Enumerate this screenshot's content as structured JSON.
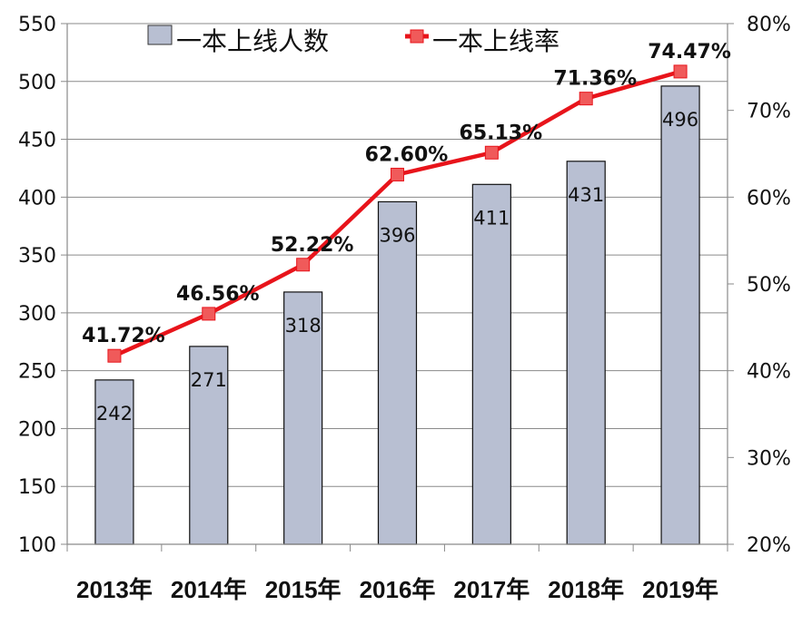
{
  "chart_data": {
    "type": "bar+line",
    "title": "",
    "categories": [
      "2013年",
      "2014年",
      "2015年",
      "2016年",
      "2017年",
      "2018年",
      "2019年"
    ],
    "series": [
      {
        "name": "一本上线人数",
        "type": "bar",
        "axis": "left",
        "color": "#b8bfd2",
        "values": [
          242,
          271,
          318,
          396,
          411,
          431,
          496
        ],
        "labels": [
          "242",
          "271",
          "318",
          "396",
          "411",
          "431",
          "496"
        ]
      },
      {
        "name": "一本上线率",
        "type": "line",
        "axis": "right",
        "color": "#e8141b",
        "marker": "square",
        "marker_color": "#f05a5a",
        "values": [
          41.72,
          46.56,
          52.22,
          62.6,
          65.13,
          71.36,
          74.47
        ],
        "labels": [
          "41.72%",
          "46.56%",
          "52.22%",
          "62.60%",
          "65.13%",
          "71.36%",
          "74.47%"
        ]
      }
    ],
    "left_axis": {
      "ylim": [
        100,
        550
      ],
      "ticks": [
        "550",
        "500",
        "450",
        "400",
        "350",
        "300",
        "250",
        "200",
        "150",
        "100"
      ]
    },
    "right_axis": {
      "ylim": [
        20,
        80
      ],
      "ticks": [
        "80%",
        "70%",
        "60%",
        "50%",
        "40%",
        "30%",
        "20%"
      ]
    },
    "xlabel": "",
    "ylabel": "",
    "grid": true,
    "legend": {
      "position": "top",
      "entries": [
        "一本上线人数",
        "一本上线率"
      ]
    }
  }
}
